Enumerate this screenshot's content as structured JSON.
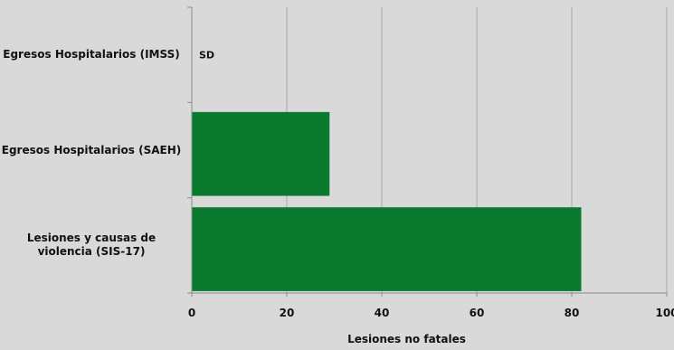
{
  "chart_data": {
    "type": "bar",
    "orientation": "horizontal",
    "categories": [
      "Egresos Hospitalarios (IMSS)",
      "Egresos Hospitalarios (SAEH)",
      "Lesiones y causas de violencia (SIS-17)"
    ],
    "values": [
      null,
      29,
      82
    ],
    "annotations": [
      "SD",
      "",
      ""
    ],
    "xlabel": "Lesiones no fatales",
    "ylabel": "",
    "title": "",
    "xlim": [
      0,
      100
    ],
    "xticks": [
      0,
      20,
      40,
      60,
      80,
      100
    ],
    "grid": true,
    "legend": "none",
    "bar_color": "#0a7a2f",
    "grid_color": "#a6a6a6",
    "axis_color": "#8c8c8c"
  }
}
